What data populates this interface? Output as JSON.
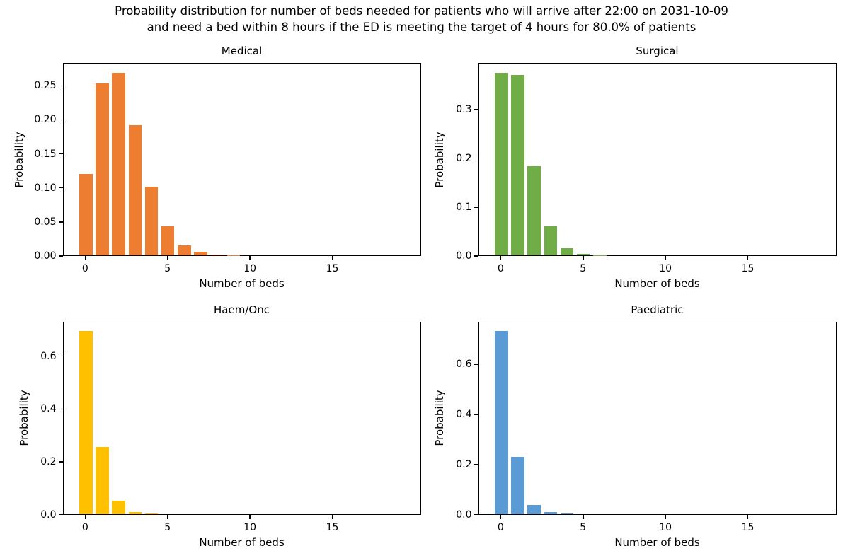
{
  "figure": {
    "title_lines": [
      "Probability distribution for number of beds needed for patients who will arrive after 22:00 on 2031-10-09",
      "and need a bed within 8 hours if the ED is meeting the target of 4 hours for 80.0% of patients"
    ],
    "background_color": "#ffffff",
    "text_color": "#000000",
    "layout": "2x2 grid of subplots"
  },
  "chart_data": [
    {
      "type": "bar",
      "title": "Medical",
      "xlabel": "Number of beds",
      "ylabel": "Probability",
      "bar_color": "#ED7D31",
      "bar_width": 0.8,
      "categories": [
        0,
        1,
        2,
        3,
        4,
        5,
        6,
        7,
        8,
        9,
        10,
        11,
        12,
        13,
        14,
        15,
        16,
        17,
        18,
        19
      ],
      "values": [
        0.12,
        0.254,
        0.27,
        0.192,
        0.102,
        0.043,
        0.015,
        0.005,
        0.001,
        0.0003,
        0,
        0,
        0,
        0,
        0,
        0,
        0,
        0,
        0,
        0
      ],
      "xlim": [
        -1.37,
        20.37
      ],
      "ylim": [
        0,
        0.2835
      ],
      "xticks": [
        0,
        5,
        10,
        15
      ],
      "yticks": {
        "values": [
          0,
          0.05,
          0.1,
          0.15,
          0.2,
          0.25
        ],
        "labels": [
          "0.00",
          "0.05",
          "0.10",
          "0.15",
          "0.20",
          "0.25"
        ]
      },
      "grid": false,
      "legend": "none"
    },
    {
      "type": "bar",
      "title": "Surgical",
      "xlabel": "Number of beds",
      "ylabel": "Probability",
      "bar_color": "#70AD47",
      "bar_width": 0.8,
      "categories": [
        0,
        1,
        2,
        3,
        4,
        5,
        6,
        7,
        8,
        9,
        10,
        11,
        12,
        13,
        14,
        15,
        16,
        17,
        18,
        19
      ],
      "values": [
        0.376,
        0.371,
        0.183,
        0.06,
        0.015,
        0.003,
        0.0005,
        0.0001,
        0,
        0,
        0,
        0,
        0,
        0,
        0,
        0,
        0,
        0,
        0,
        0
      ],
      "xlim": [
        -1.37,
        20.37
      ],
      "ylim": [
        0,
        0.3948
      ],
      "xticks": [
        0,
        5,
        10,
        15
      ],
      "yticks": {
        "values": [
          0,
          0.1,
          0.2,
          0.3
        ],
        "labels": [
          "0.0",
          "0.1",
          "0.2",
          "0.3"
        ]
      },
      "grid": false,
      "legend": "none"
    },
    {
      "type": "bar",
      "title": "Haem/Onc",
      "xlabel": "Number of beds",
      "ylabel": "Probability",
      "bar_color": "#FFC000",
      "bar_width": 0.8,
      "categories": [
        0,
        1,
        2,
        3,
        4,
        5,
        6,
        7,
        8,
        9,
        10,
        11,
        12,
        13,
        14,
        15,
        16,
        17,
        18,
        19
      ],
      "values": [
        0.697,
        0.255,
        0.049,
        0.006,
        0.0006,
        0,
        0,
        0,
        0,
        0,
        0,
        0,
        0,
        0,
        0,
        0,
        0,
        0,
        0,
        0
      ],
      "xlim": [
        -1.37,
        20.37
      ],
      "ylim": [
        0,
        0.7319
      ],
      "xticks": [
        0,
        5,
        10,
        15
      ],
      "yticks": {
        "values": [
          0,
          0.2,
          0.4,
          0.6
        ],
        "labels": [
          "0.0",
          "0.2",
          "0.4",
          "0.6"
        ]
      },
      "grid": false,
      "legend": "none"
    },
    {
      "type": "bar",
      "title": "Paediatric",
      "xlabel": "Number of beds",
      "ylabel": "Probability",
      "bar_color": "#5B9BD5",
      "bar_width": 0.8,
      "categories": [
        0,
        1,
        2,
        3,
        4,
        5,
        6,
        7,
        8,
        9,
        10,
        11,
        12,
        13,
        14,
        15,
        16,
        17,
        18,
        19
      ],
      "values": [
        0.735,
        0.228,
        0.036,
        0.006,
        0.0005,
        0,
        0,
        0,
        0,
        0,
        0,
        0,
        0,
        0,
        0,
        0,
        0,
        0,
        0,
        0
      ],
      "xlim": [
        -1.37,
        20.37
      ],
      "ylim": [
        0,
        0.7718
      ],
      "xticks": [
        0,
        5,
        10,
        15
      ],
      "yticks": {
        "values": [
          0,
          0.2,
          0.4,
          0.6
        ],
        "labels": [
          "0.0",
          "0.2",
          "0.4",
          "0.6"
        ]
      },
      "grid": false,
      "legend": "none"
    }
  ]
}
